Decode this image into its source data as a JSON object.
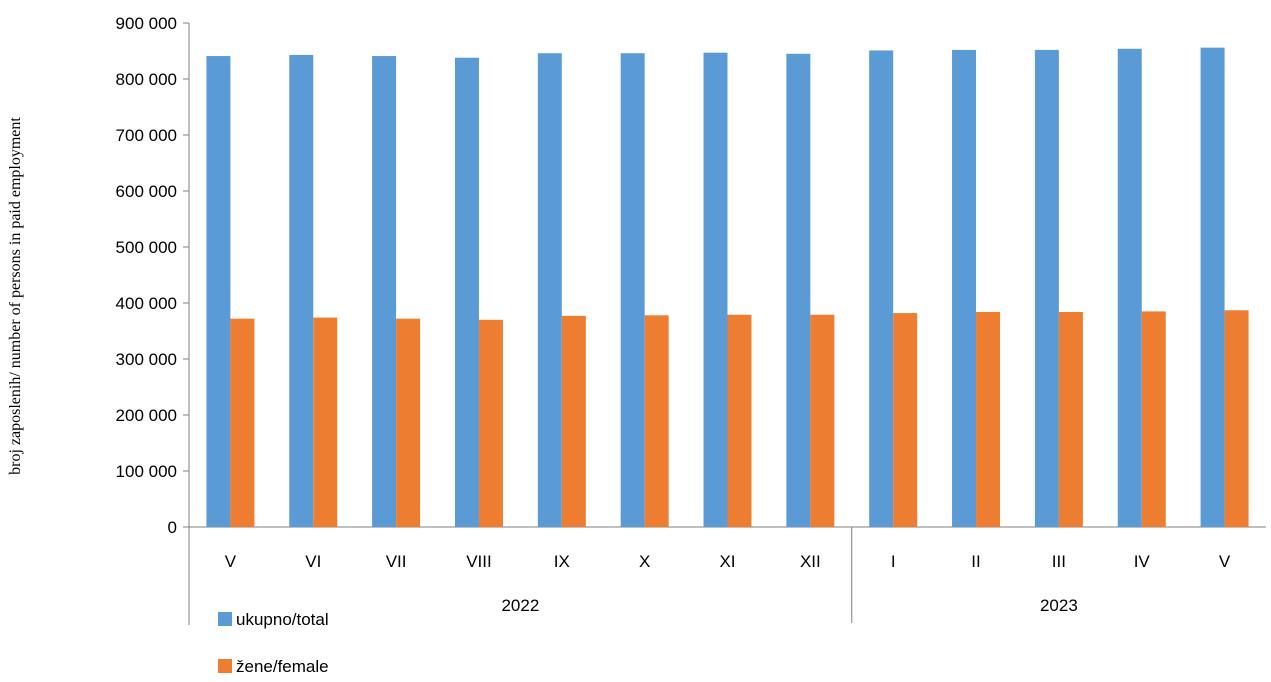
{
  "chart_data": {
    "type": "bar",
    "ylabel": "broj zaposlenih/ number of  persons  in paid employment",
    "xlabel": "",
    "ylim": [
      0,
      900000
    ],
    "yticks": [
      "0",
      "100 000",
      "200 000",
      "300 000",
      "400 000",
      "500 000",
      "600 000",
      "700 000",
      "800 000",
      "900 000"
    ],
    "ytick_values": [
      0,
      100000,
      200000,
      300000,
      400000,
      500000,
      600000,
      700000,
      800000,
      900000
    ],
    "categories": [
      "V",
      "VI",
      "VII",
      "VIII",
      "IX",
      "X",
      "XI",
      "XII",
      "I",
      "II",
      "III",
      "IV",
      "V"
    ],
    "year_groups": [
      {
        "label": "2022",
        "count": 8
      },
      {
        "label": "2023",
        "count": 5
      }
    ],
    "series": [
      {
        "name": "ukupno/total",
        "color": "#5B9BD5",
        "values": [
          841000,
          843000,
          841000,
          838000,
          846000,
          846000,
          847000,
          845000,
          851000,
          852000,
          852000,
          854000,
          856000
        ]
      },
      {
        "name": "žene/female",
        "color": "#ED7D31",
        "values": [
          372000,
          374000,
          372000,
          370000,
          377000,
          378000,
          379000,
          379000,
          382000,
          384000,
          384000,
          385000,
          387000
        ]
      }
    ],
    "grid": false,
    "legend": "bottom-left"
  }
}
